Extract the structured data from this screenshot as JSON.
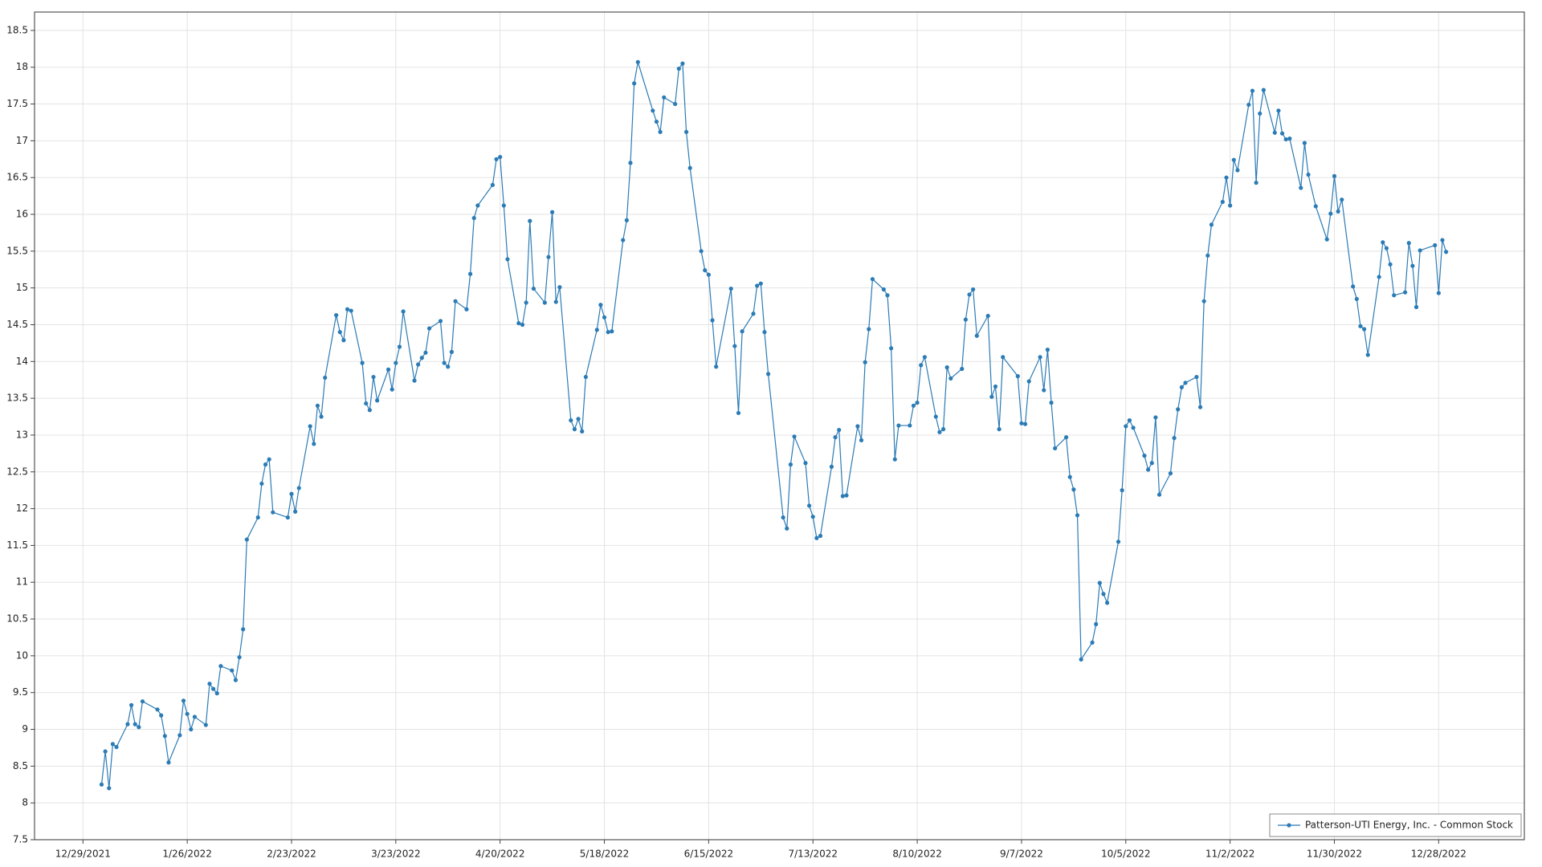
{
  "chart_data": {
    "type": "line",
    "x": [
      "1/3/2022",
      "1/4/2022",
      "1/5/2022",
      "1/6/2022",
      "1/7/2022",
      "1/10/2022",
      "1/11/2022",
      "1/12/2022",
      "1/13/2022",
      "1/14/2022",
      "1/18/2022",
      "1/19/2022",
      "1/20/2022",
      "1/21/2022",
      "1/24/2022",
      "1/25/2022",
      "1/26/2022",
      "1/27/2022",
      "1/28/2022",
      "1/31/2022",
      "2/1/2022",
      "2/2/2022",
      "2/3/2022",
      "2/4/2022",
      "2/7/2022",
      "2/8/2022",
      "2/9/2022",
      "2/10/2022",
      "2/11/2022",
      "2/14/2022",
      "2/15/2022",
      "2/16/2022",
      "2/17/2022",
      "2/18/2022",
      "2/22/2022",
      "2/23/2022",
      "2/24/2022",
      "2/25/2022",
      "2/28/2022",
      "3/1/2022",
      "3/2/2022",
      "3/3/2022",
      "3/4/2022",
      "3/7/2022",
      "3/8/2022",
      "3/9/2022",
      "3/10/2022",
      "3/11/2022",
      "3/14/2022",
      "3/15/2022",
      "3/16/2022",
      "3/17/2022",
      "3/18/2022",
      "3/21/2022",
      "3/22/2022",
      "3/23/2022",
      "3/24/2022",
      "3/25/2022",
      "3/28/2022",
      "3/29/2022",
      "3/30/2022",
      "3/31/2022",
      "4/1/2022",
      "4/4/2022",
      "4/5/2022",
      "4/6/2022",
      "4/7/2022",
      "4/8/2022",
      "4/11/2022",
      "4/12/2022",
      "4/13/2022",
      "4/14/2022",
      "4/18/2022",
      "4/19/2022",
      "4/20/2022",
      "4/21/2022",
      "4/22/2022",
      "4/25/2022",
      "4/26/2022",
      "4/27/2022",
      "4/28/2022",
      "4/29/2022",
      "5/2/2022",
      "5/3/2022",
      "5/4/2022",
      "5/5/2022",
      "5/6/2022",
      "5/9/2022",
      "5/10/2022",
      "5/11/2022",
      "5/12/2022",
      "5/13/2022",
      "5/16/2022",
      "5/17/2022",
      "5/18/2022",
      "5/19/2022",
      "5/20/2022",
      "5/23/2022",
      "5/24/2022",
      "5/25/2022",
      "5/26/2022",
      "5/27/2022",
      "5/31/2022",
      "6/1/2022",
      "6/2/2022",
      "6/3/2022",
      "6/6/2022",
      "6/7/2022",
      "6/8/2022",
      "6/9/2022",
      "6/10/2022",
      "6/13/2022",
      "6/14/2022",
      "6/15/2022",
      "6/16/2022",
      "6/17/2022",
      "6/21/2022",
      "6/22/2022",
      "6/23/2022",
      "6/24/2022",
      "6/27/2022",
      "6/28/2022",
      "6/29/2022",
      "6/30/2022",
      "7/1/2022",
      "7/5/2022",
      "7/6/2022",
      "7/7/2022",
      "7/8/2022",
      "7/11/2022",
      "7/12/2022",
      "7/13/2022",
      "7/14/2022",
      "7/15/2022",
      "7/18/2022",
      "7/19/2022",
      "7/20/2022",
      "7/21/2022",
      "7/22/2022",
      "7/25/2022",
      "7/26/2022",
      "7/27/2022",
      "7/28/2022",
      "7/29/2022",
      "8/1/2022",
      "8/2/2022",
      "8/3/2022",
      "8/4/2022",
      "8/5/2022",
      "8/8/2022",
      "8/9/2022",
      "8/10/2022",
      "8/11/2022",
      "8/12/2022",
      "8/15/2022",
      "8/16/2022",
      "8/17/2022",
      "8/18/2022",
      "8/19/2022",
      "8/22/2022",
      "8/23/2022",
      "8/24/2022",
      "8/25/2022",
      "8/26/2022",
      "8/29/2022",
      "8/30/2022",
      "8/31/2022",
      "9/1/2022",
      "9/2/2022",
      "9/6/2022",
      "9/7/2022",
      "9/8/2022",
      "9/9/2022",
      "9/12/2022",
      "9/13/2022",
      "9/14/2022",
      "9/15/2022",
      "9/16/2022",
      "9/19/2022",
      "9/20/2022",
      "9/21/2022",
      "9/22/2022",
      "9/23/2022",
      "9/26/2022",
      "9/27/2022",
      "9/28/2022",
      "9/29/2022",
      "9/30/2022",
      "10/3/2022",
      "10/4/2022",
      "10/5/2022",
      "10/6/2022",
      "10/7/2022",
      "10/10/2022",
      "10/11/2022",
      "10/12/2022",
      "10/13/2022",
      "10/14/2022",
      "10/17/2022",
      "10/18/2022",
      "10/19/2022",
      "10/20/2022",
      "10/21/2022",
      "10/24/2022",
      "10/25/2022",
      "10/26/2022",
      "10/27/2022",
      "10/28/2022",
      "10/31/2022",
      "11/1/2022",
      "11/2/2022",
      "11/3/2022",
      "11/4/2022",
      "11/7/2022",
      "11/8/2022",
      "11/9/2022",
      "11/10/2022",
      "11/11/2022",
      "11/14/2022",
      "11/15/2022",
      "11/16/2022",
      "11/17/2022",
      "11/18/2022",
      "11/21/2022",
      "11/22/2022",
      "11/23/2022",
      "11/25/2022",
      "11/28/2022",
      "11/29/2022",
      "11/30/2022",
      "12/1/2022",
      "12/2/2022",
      "12/5/2022",
      "12/6/2022",
      "12/7/2022",
      "12/8/2022",
      "12/9/2022",
      "12/12/2022",
      "12/13/2022",
      "12/14/2022",
      "12/15/2022",
      "12/16/2022",
      "12/19/2022",
      "12/20/2022",
      "12/21/2022",
      "12/22/2022",
      "12/23/2022",
      "12/27/2022",
      "12/28/2022",
      "12/29/2022",
      "12/30/2022"
    ],
    "series": [
      {
        "name": "Patterson-UTI Energy, Inc. - Common Stock",
        "color": "#2b7bb5",
        "values": [
          8.25,
          8.7,
          8.2,
          8.8,
          8.76,
          9.07,
          9.33,
          9.07,
          9.03,
          9.38,
          9.27,
          9.19,
          8.91,
          8.55,
          8.92,
          9.39,
          9.21,
          9.0,
          9.17,
          9.06,
          9.62,
          9.55,
          9.49,
          9.86,
          9.8,
          9.67,
          9.98,
          10.36,
          11.58,
          11.88,
          12.34,
          12.6,
          12.67,
          11.95,
          11.88,
          12.2,
          11.96,
          12.28,
          13.12,
          12.88,
          13.4,
          13.25,
          13.78,
          14.63,
          14.4,
          14.29,
          14.71,
          14.69,
          13.98,
          13.43,
          13.34,
          13.79,
          13.47,
          13.89,
          13.62,
          13.98,
          14.2,
          14.68,
          13.74,
          13.96,
          14.05,
          14.12,
          14.45,
          14.55,
          13.98,
          13.93,
          14.13,
          14.82,
          14.71,
          15.19,
          15.95,
          16.12,
          16.4,
          16.75,
          16.78,
          16.12,
          15.39,
          14.52,
          14.5,
          14.8,
          15.91,
          14.99,
          14.8,
          15.42,
          16.03,
          14.81,
          15.01,
          13.2,
          13.08,
          13.22,
          13.05,
          13.79,
          14.43,
          14.77,
          14.6,
          14.4,
          14.41,
          15.65,
          15.92,
          16.7,
          17.78,
          18.07,
          17.41,
          17.26,
          17.12,
          17.59,
          17.5,
          17.98,
          18.05,
          17.12,
          16.63,
          15.5,
          15.24,
          15.18,
          14.56,
          13.93,
          14.99,
          14.21,
          13.3,
          14.41,
          14.65,
          15.03,
          15.06,
          14.4,
          13.83,
          11.88,
          11.73,
          12.6,
          12.98,
          12.62,
          12.04,
          11.89,
          11.6,
          11.63,
          12.57,
          12.97,
          13.07,
          12.17,
          12.18,
          13.12,
          12.93,
          13.99,
          14.44,
          15.12,
          14.98,
          14.9,
          14.18,
          12.67,
          13.13,
          13.13,
          13.4,
          13.44,
          13.95,
          14.06,
          13.25,
          13.04,
          13.08,
          13.92,
          13.77,
          13.9,
          14.57,
          14.91,
          14.98,
          14.35,
          14.62,
          13.52,
          13.66,
          13.08,
          14.06,
          13.8,
          13.16,
          13.15,
          13.73,
          14.06,
          13.61,
          14.16,
          13.44,
          12.82,
          12.97,
          12.43,
          12.26,
          11.91,
          9.95,
          10.18,
          10.43,
          10.99,
          10.84,
          10.72,
          11.55,
          12.25,
          13.12,
          13.2,
          13.1,
          12.72,
          12.53,
          12.62,
          13.24,
          12.19,
          12.48,
          12.96,
          13.35,
          13.65,
          13.71,
          13.79,
          13.38,
          14.82,
          15.44,
          15.86,
          16.17,
          16.5,
          16.12,
          16.74,
          16.6,
          17.49,
          17.68,
          16.43,
          17.37,
          17.69,
          17.11,
          17.41,
          17.1,
          17.02,
          17.03,
          16.36,
          16.97,
          16.54,
          16.11,
          15.66,
          16.01,
          16.52,
          16.04,
          16.2,
          15.02,
          14.85,
          14.48,
          14.44,
          14.09,
          15.15,
          15.62,
          15.54,
          15.32,
          14.9,
          14.94,
          15.61,
          15.3,
          14.74,
          15.51,
          15.58,
          14.93,
          15.65,
          15.49
        ]
      }
    ],
    "xlim": [
      "12/16/2021",
      "1/20/2023"
    ],
    "xticks": [
      "12/29/2021",
      "1/26/2022",
      "2/23/2022",
      "3/23/2022",
      "4/20/2022",
      "5/18/2022",
      "6/15/2022",
      "7/13/2022",
      "8/10/2022",
      "9/7/2022",
      "10/5/2022",
      "11/2/2022",
      "11/30/2022",
      "12/28/2022"
    ],
    "ylim": [
      7.5,
      18.75
    ],
    "yticks": [
      7.5,
      8,
      8.5,
      9,
      9.5,
      10,
      10.5,
      11,
      11.5,
      12,
      12.5,
      13,
      13.5,
      14,
      14.5,
      15,
      15.5,
      16,
      16.5,
      17,
      17.5,
      18,
      18.5
    ],
    "grid": true,
    "markers": true,
    "legend": "lower right"
  }
}
